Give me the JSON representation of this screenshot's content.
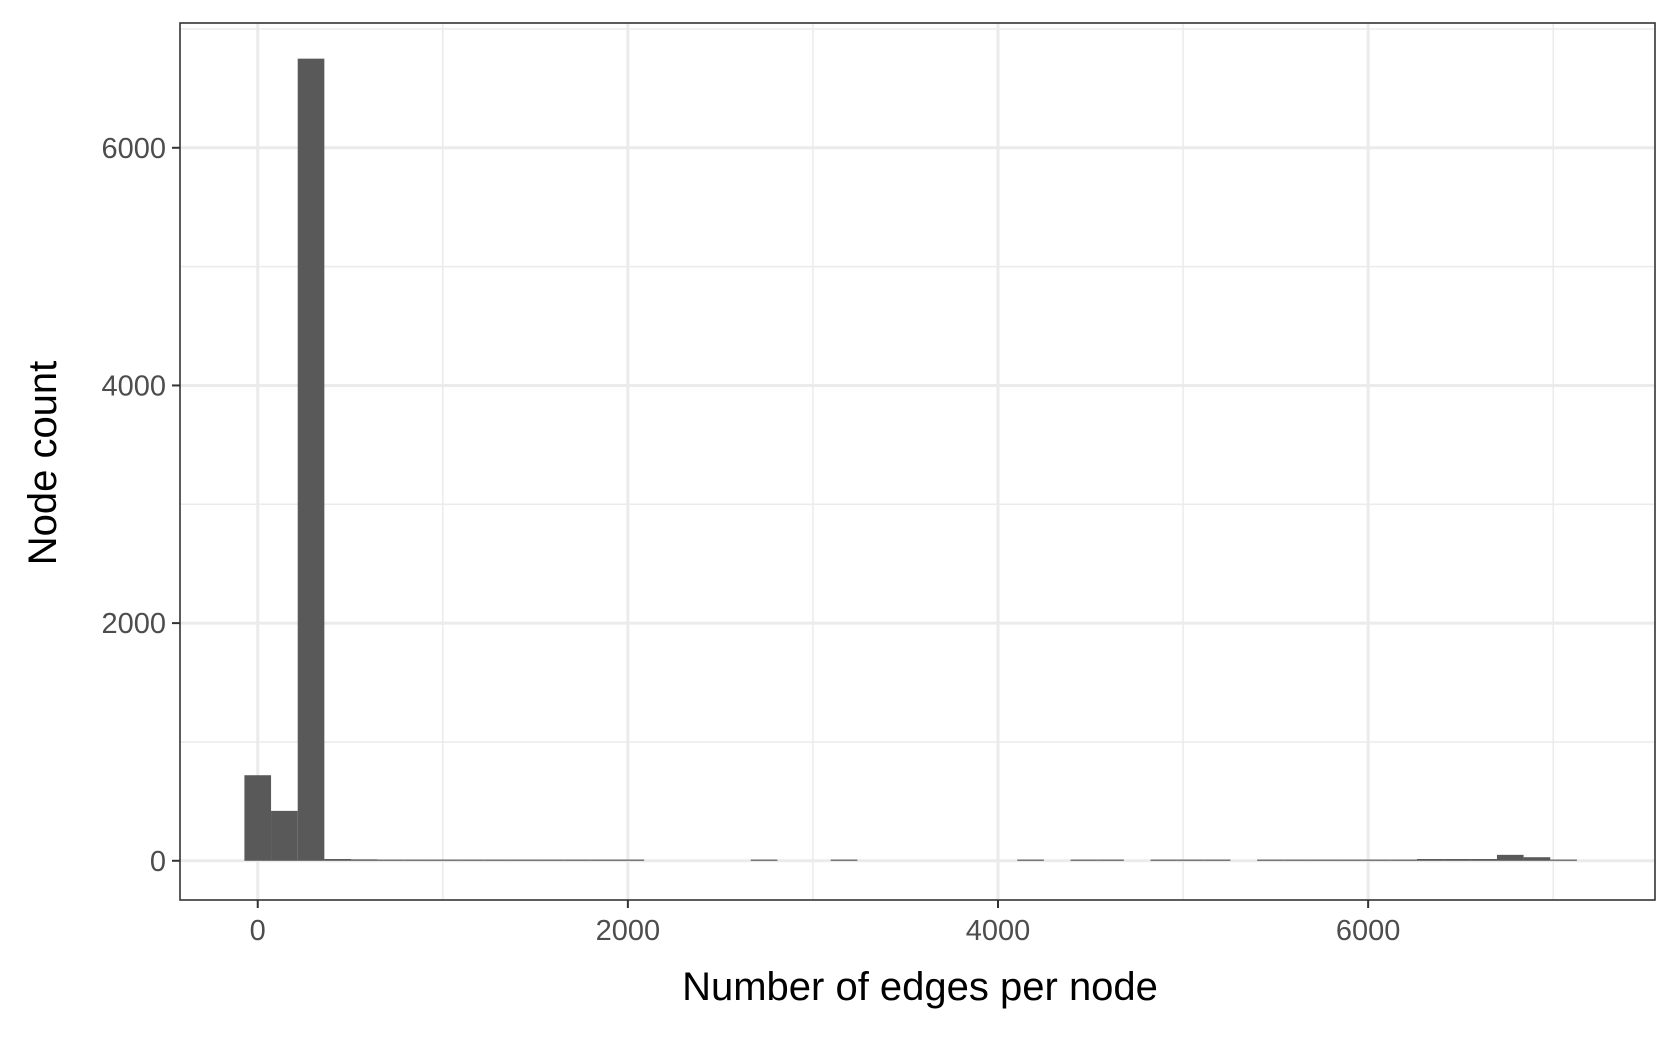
{
  "chart_data": {
    "type": "bar",
    "title": "",
    "xlabel": "Number of edges per node",
    "ylabel": "Node count",
    "xlim": [
      -420,
      7550
    ],
    "ylim": [
      -330,
      7050
    ],
    "x_ticks": [
      0,
      2000,
      4000,
      6000
    ],
    "x_minor": [
      1000,
      3000,
      5000,
      7000
    ],
    "y_ticks": [
      0,
      2000,
      4000,
      6000
    ],
    "y_minor": [
      1000,
      3000,
      5000,
      7000
    ],
    "x_tick_labels": [
      "0",
      "2000",
      "4000",
      "6000"
    ],
    "y_tick_labels": [
      "0",
      "2000",
      "4000",
      "6000"
    ],
    "grid": true,
    "bin_width": 144,
    "bins": [
      {
        "x0": -72,
        "count": 720
      },
      {
        "x0": 72,
        "count": 420
      },
      {
        "x0": 216,
        "count": 6750
      },
      {
        "x0": 360,
        "count": 15
      },
      {
        "x0": 504,
        "count": 12
      },
      {
        "x0": 648,
        "count": 8
      },
      {
        "x0": 792,
        "count": 4
      },
      {
        "x0": 936,
        "count": 3
      },
      {
        "x0": 1080,
        "count": 3
      },
      {
        "x0": 1224,
        "count": 3
      },
      {
        "x0": 1368,
        "count": 3
      },
      {
        "x0": 1512,
        "count": 3
      },
      {
        "x0": 1656,
        "count": 3
      },
      {
        "x0": 1800,
        "count": 3
      },
      {
        "x0": 1944,
        "count": 3
      },
      {
        "x0": 2664,
        "count": 3
      },
      {
        "x0": 3096,
        "count": 3
      },
      {
        "x0": 4104,
        "count": 3
      },
      {
        "x0": 4392,
        "count": 3
      },
      {
        "x0": 4536,
        "count": 3
      },
      {
        "x0": 4824,
        "count": 3
      },
      {
        "x0": 4968,
        "count": 3
      },
      {
        "x0": 5112,
        "count": 3
      },
      {
        "x0": 5400,
        "count": 3
      },
      {
        "x0": 5544,
        "count": 3
      },
      {
        "x0": 5688,
        "count": 3
      },
      {
        "x0": 5832,
        "count": 6
      },
      {
        "x0": 5976,
        "count": 8
      },
      {
        "x0": 6120,
        "count": 8
      },
      {
        "x0": 6264,
        "count": 15
      },
      {
        "x0": 6408,
        "count": 15
      },
      {
        "x0": 6552,
        "count": 15
      },
      {
        "x0": 6696,
        "count": 50
      },
      {
        "x0": 6840,
        "count": 30
      },
      {
        "x0": 6984,
        "count": 3
      }
    ],
    "bar_color": "#595959",
    "grid_major_color": "#ebebeb",
    "grid_minor_color": "#ebebeb",
    "panel_border_color": "#333333",
    "tick_label_color": "#4d4d4d",
    "tick_color": "#333333"
  }
}
